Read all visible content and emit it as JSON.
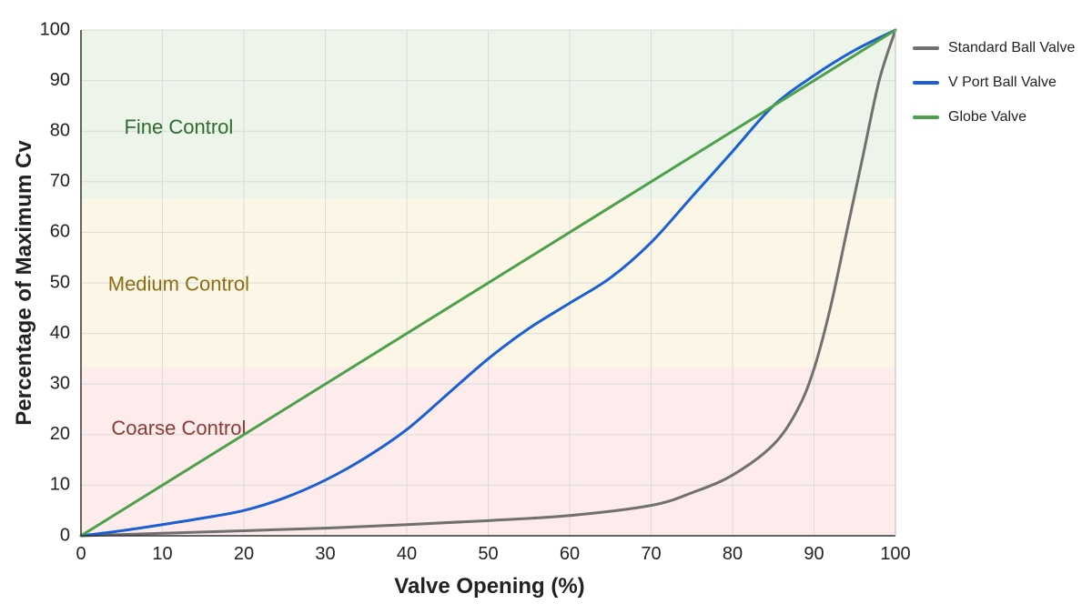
{
  "chart_data": {
    "type": "line",
    "xlabel": "Valve Opening (%)",
    "ylabel": "Percentage of Maximum Cv",
    "xlim": [
      0,
      100
    ],
    "ylim": [
      0,
      100
    ],
    "xticks": [
      0,
      10,
      20,
      30,
      40,
      50,
      60,
      70,
      80,
      90,
      100
    ],
    "yticks": [
      0,
      10,
      20,
      30,
      40,
      50,
      60,
      70,
      80,
      90,
      100
    ],
    "grid": true,
    "legend_position": "right",
    "zones": [
      {
        "label": "Coarse Control",
        "y_from": 0,
        "y_to": 33.3,
        "fill": "#fdeceb",
        "text_color": "#8a3b35",
        "label_x": 12,
        "label_y": 21
      },
      {
        "label": "Medium Control",
        "y_from": 33.3,
        "y_to": 66.7,
        "fill": "#fcf6e6",
        "text_color": "#8a6d12",
        "label_x": 12,
        "label_y": 49.5
      },
      {
        "label": "Fine Control",
        "y_from": 66.7,
        "y_to": 100,
        "fill": "#edf4ea",
        "text_color": "#2e6b2e",
        "label_x": 12,
        "label_y": 80.5
      }
    ],
    "series": [
      {
        "name": "Standard Ball Valve",
        "color": "#707070",
        "x": [
          0,
          10,
          20,
          30,
          40,
          50,
          60,
          70,
          75,
          80,
          85,
          88,
          90,
          92,
          94,
          96,
          98,
          100
        ],
        "y": [
          0,
          0.5,
          1,
          1.5,
          2.2,
          3,
          4,
          6,
          8.5,
          12,
          18,
          25,
          33,
          45,
          60,
          75,
          90,
          100
        ]
      },
      {
        "name": "V Port Ball Valve",
        "color": "#1a5fd4",
        "x": [
          0,
          5,
          10,
          15,
          20,
          25,
          30,
          35,
          40,
          45,
          50,
          55,
          60,
          65,
          70,
          75,
          80,
          85,
          90,
          95,
          100
        ],
        "y": [
          0,
          1,
          2.2,
          3.5,
          5,
          7.5,
          11,
          15.5,
          21,
          28,
          35,
          41,
          46,
          51,
          58,
          67,
          76,
          85,
          91,
          96,
          100
        ]
      },
      {
        "name": "Globe Valve",
        "color": "#4ca04a",
        "x": [
          0,
          100
        ],
        "y": [
          0,
          100
        ]
      }
    ]
  }
}
